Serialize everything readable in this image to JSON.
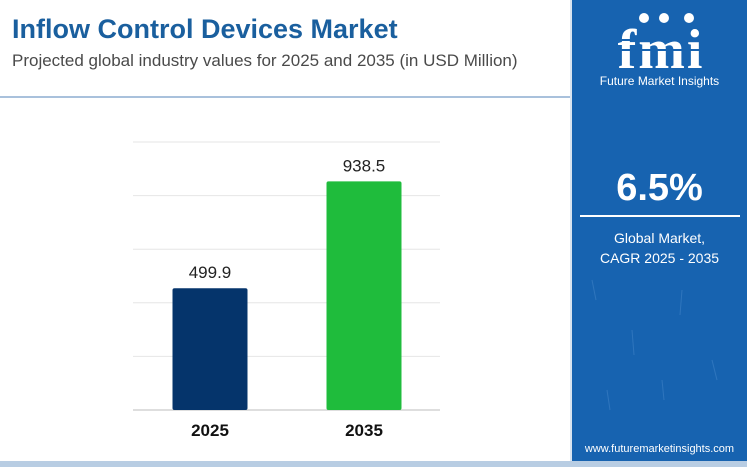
{
  "header": {
    "title": "Inflow Control Devices Market",
    "subtitle": "Projected global industry values for 2025 and 2035 (in USD Million)"
  },
  "chart_data": {
    "type": "bar",
    "categories": [
      "2025",
      "2035"
    ],
    "values": [
      499.9,
      938.5
    ],
    "value_labels": [
      "499.9",
      "938.5"
    ],
    "bar_colors": [
      "#05346b",
      "#1fbc3c"
    ],
    "grid": true,
    "ylim": [
      0,
      1100
    ],
    "xlabel": "",
    "ylabel": ""
  },
  "sidebar": {
    "brand_logo_text": "fmi",
    "brand_name": "Future Market Insights",
    "cagr_value": "6.5%",
    "cagr_label_line1": "Global Market,",
    "cagr_label_line2": "CAGR 2025 - 2035",
    "website": "www.futuremarketinsights.com",
    "background_color": "#1763b0"
  }
}
